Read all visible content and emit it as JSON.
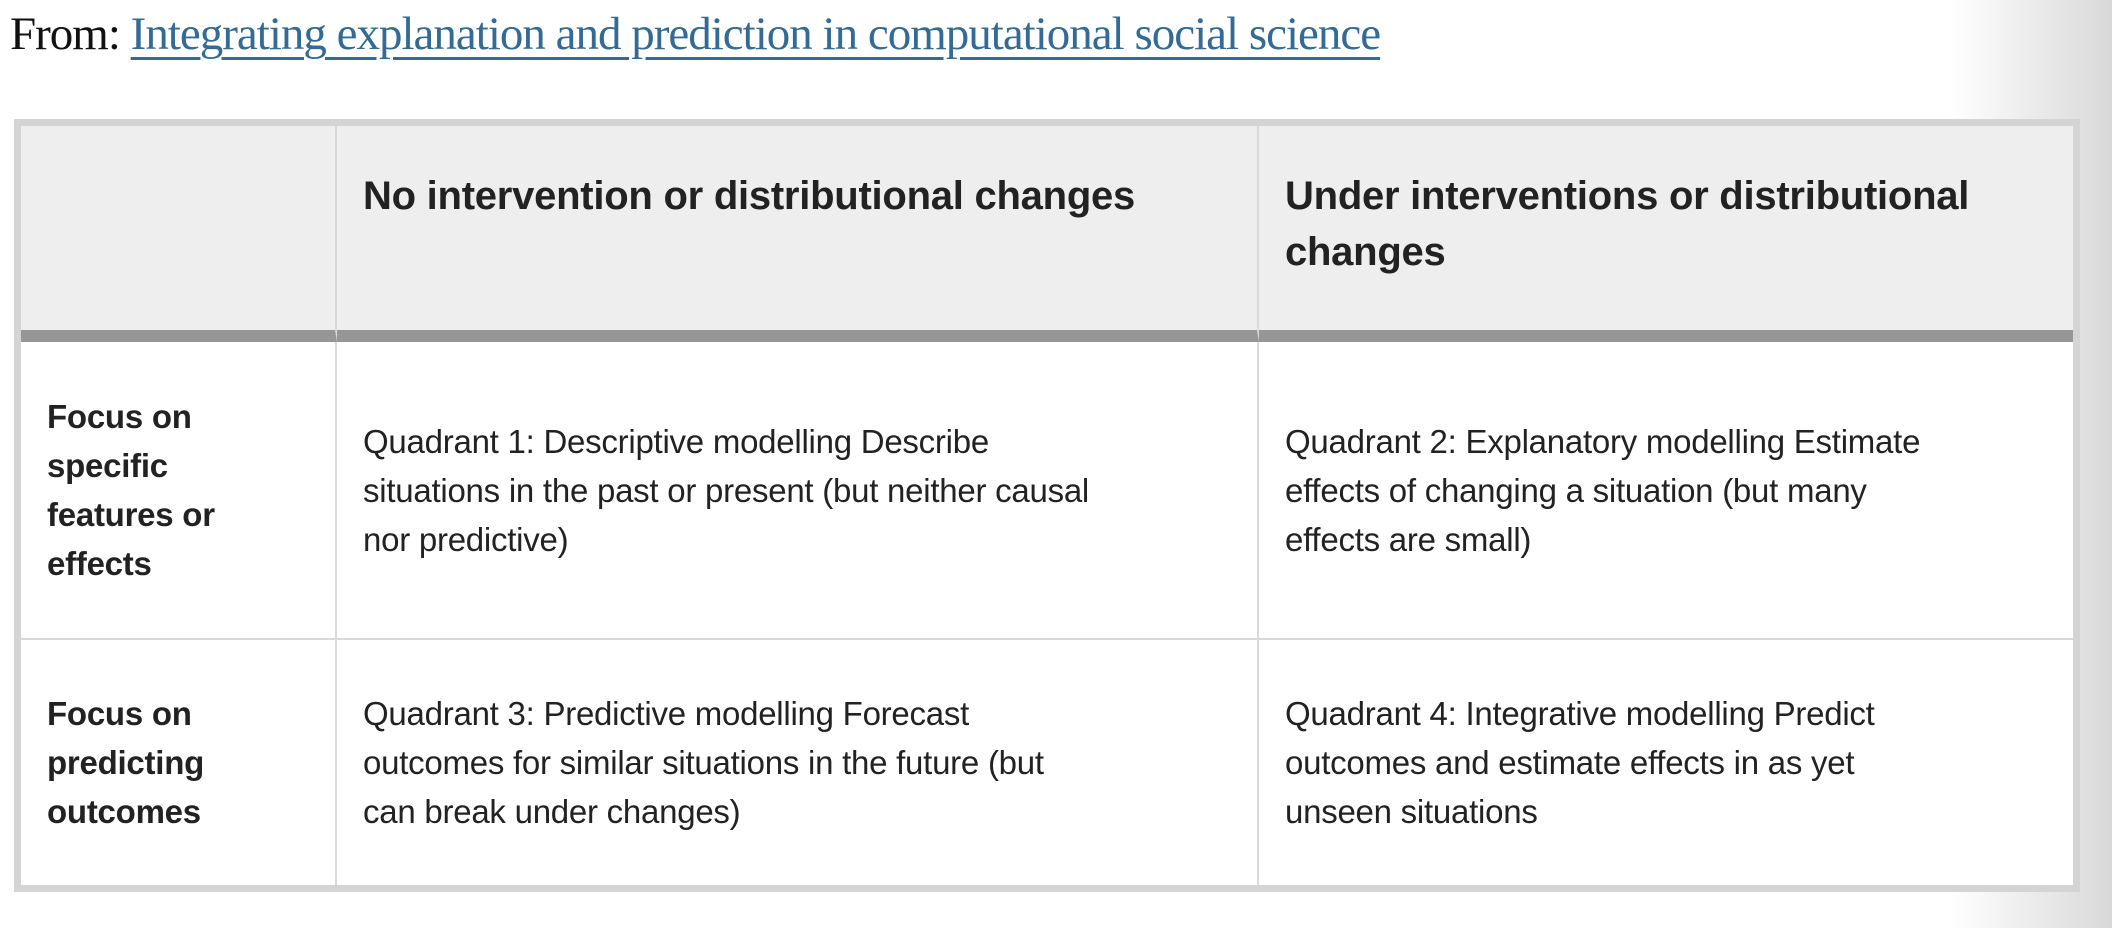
{
  "source": {
    "prefix_label": "From: ",
    "link_text": "Integrating explanation and prediction in computational social science"
  },
  "table": {
    "header": {
      "empty_corner": "",
      "no_intervention": "No intervention or distributional changes",
      "under_interventions": [
        "Under interventions or distributional",
        "changes"
      ]
    },
    "rows": [
      {
        "row_header": [
          "Focus on",
          "specific",
          "features or",
          "effects"
        ],
        "no_intervention": [
          "Quadrant 1: Descriptive modelling Describe",
          "situations in the past or present (but neither causal",
          "nor predictive)"
        ],
        "under_interventions": [
          "Quadrant 2: Explanatory modelling Estimate",
          "effects of changing a situation (but many",
          "effects are small)"
        ]
      },
      {
        "row_header": [
          "Focus on",
          "predicting",
          "outcomes"
        ],
        "no_intervention": [
          "Quadrant 3: Predictive modelling Forecast",
          "outcomes for similar situations in the future (but",
          "can break under changes)"
        ],
        "under_interventions": [
          "Quadrant 4: Integrative modelling Predict",
          "outcomes and estimate effects in as yet",
          "unseen situations"
        ]
      }
    ],
    "colors": {
      "link_blue": "#336b94",
      "header_background": "#eeeeee",
      "header_rule": "#969696",
      "outer_border": "#d4d4d4",
      "grid_line": "#d9d9d9",
      "text": "#222222",
      "page_edge_shadow": "#d9d9d9"
    }
  }
}
